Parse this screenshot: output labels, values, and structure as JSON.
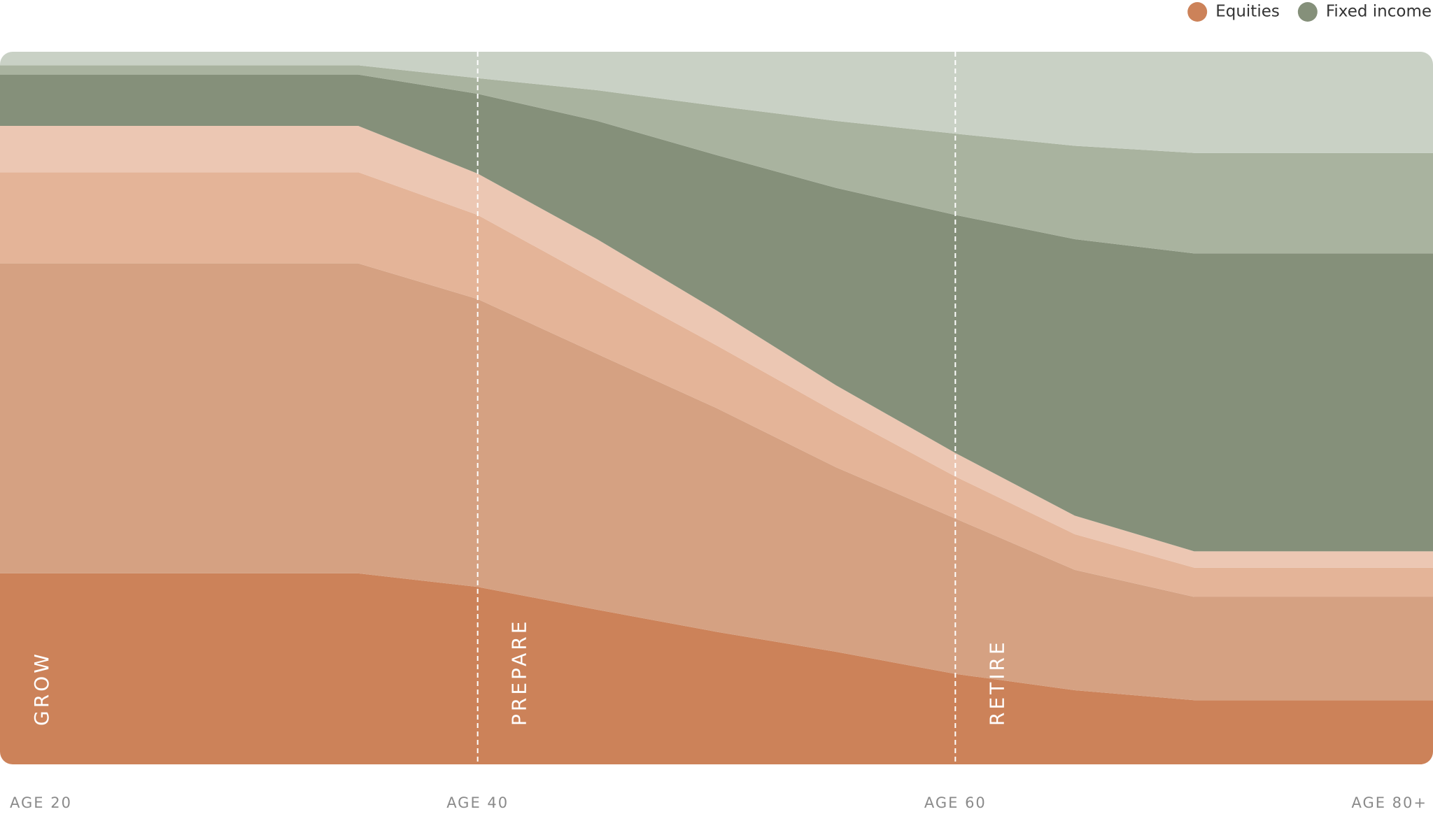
{
  "chart_data": {
    "type": "stacked-area",
    "x": [
      20,
      35,
      40,
      45,
      50,
      55,
      60,
      65,
      70,
      80
    ],
    "xlim": [
      20,
      80
    ],
    "xticks": [
      {
        "value": 20,
        "label": "AGE 20"
      },
      {
        "value": 40,
        "label": "AGE 40"
      },
      {
        "value": 60,
        "label": "AGE 60"
      },
      {
        "value": 80,
        "label": "AGE 80+"
      }
    ],
    "ylim": [
      0,
      100
    ],
    "legend": [
      {
        "name": "Equities",
        "color": "#cc8259"
      },
      {
        "name": "Fixed income",
        "color": "#85907a"
      }
    ],
    "series": [
      {
        "color": "#cc8259",
        "values": [
          26.8,
          26.8,
          24.9,
          21.7,
          18.6,
          15.8,
          12.7,
          10.4,
          9.0,
          9.0
        ]
      },
      {
        "color": "#d5a182",
        "values": [
          43.5,
          43.5,
          40.4,
          35.9,
          31.4,
          25.9,
          21.8,
          16.9,
          14.5,
          14.5
        ]
      },
      {
        "color": "#e4b498",
        "values": [
          12.8,
          12.8,
          11.8,
          10.3,
          8.8,
          7.7,
          5.9,
          5.0,
          4.1,
          4.1
        ]
      },
      {
        "color": "#ecc7b3",
        "values": [
          6.5,
          6.5,
          5.8,
          5.8,
          4.9,
          3.8,
          3.3,
          2.6,
          2.3,
          2.3
        ]
      },
      {
        "color": "#85907a",
        "values": [
          7.2,
          7.2,
          11.2,
          16.6,
          21.8,
          27.7,
          33.4,
          38.8,
          41.8,
          41.8
        ]
      },
      {
        "color": "#a9b39f",
        "values": [
          1.3,
          1.3,
          2.2,
          4.3,
          6.9,
          9.4,
          11.4,
          13.1,
          14.1,
          14.1
        ]
      },
      {
        "color": "#c9d1c5",
        "values": [
          1.9,
          1.9,
          3.7,
          5.4,
          7.6,
          9.7,
          11.5,
          13.2,
          14.2,
          14.2
        ]
      }
    ],
    "phases": [
      {
        "label": "GROW",
        "start": 20
      },
      {
        "label": "PREPARE",
        "start": 40
      },
      {
        "label": "RETIRE",
        "start": 60
      }
    ]
  }
}
